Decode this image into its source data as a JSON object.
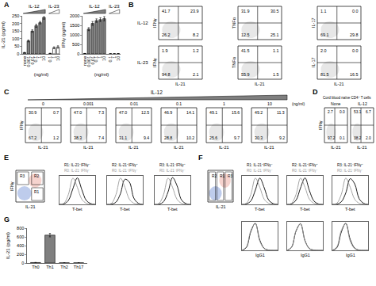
{
  "chart_data": [
    {
      "panel": "A",
      "type": "bar",
      "y_label": "IL-21 (pg/ml)",
      "x_label": "(ng/ml)",
      "ylim": [
        0,
        250
      ],
      "yticks": [
        0,
        50,
        100,
        150,
        200,
        250
      ],
      "groups": [
        {
          "title": "IL-12",
          "color": "#7f7f7f",
          "categories": [
            "none",
            "0.001",
            "0.01",
            "0.1",
            "1",
            "10"
          ],
          "values": [
            8,
            85,
            150,
            185,
            205,
            240
          ],
          "errors": [
            2,
            6,
            8,
            10,
            8,
            12
          ]
        },
        {
          "title": "IL-23",
          "color": "#ffffff",
          "categories": [
            "0.1",
            "1",
            "10"
          ],
          "values": [
            3,
            40,
            45
          ],
          "errors": [
            1,
            6,
            8
          ]
        }
      ]
    },
    {
      "type": "bar",
      "y_label": "IFNγ (pg/ml)",
      "x_label": "(ng/ml)",
      "ylim": [
        0,
        2000
      ],
      "yticks": [
        0,
        500,
        1000,
        1500,
        2000
      ],
      "groups": [
        {
          "title": "IL-12",
          "color": "#7f7f7f",
          "categories": [
            "none",
            "0.001",
            "0.01",
            "0.1",
            "1",
            "10"
          ],
          "values": [
            20,
            1300,
            1600,
            1750,
            1800,
            1850
          ],
          "errors": [
            5,
            80,
            100,
            90,
            100,
            110
          ]
        },
        {
          "title": "IL-23",
          "color": "#ffffff",
          "categories": [
            "0.1",
            "1",
            "10"
          ],
          "values": [
            5,
            5,
            10
          ],
          "errors": [
            2,
            2,
            3
          ]
        }
      ]
    },
    {
      "panel": "B",
      "type": "flow",
      "x_label": "IL-21",
      "rows": [
        {
          "label": "IL-12",
          "plots": [
            {
              "y_label": "IFNγ",
              "quadrants": [
                41.7,
                23.9,
                26.2,
                8.2
              ]
            },
            {
              "y_label": "TNFα",
              "quadrants": [
                31.9,
                30.5,
                12.5,
                25.1
              ]
            },
            {
              "y_label": "IL-17",
              "quadrants": [
                1.1,
                0.0,
                69.1,
                29.8
              ]
            }
          ]
        },
        {
          "label": "IL-23",
          "plots": [
            {
              "y_label": "IFNγ",
              "quadrants": [
                1.9,
                1.2,
                94.8,
                2.1
              ]
            },
            {
              "y_label": "TNFα",
              "quadrants": [
                41.5,
                1.1,
                55.9,
                1.5
              ]
            },
            {
              "y_label": "IL-17",
              "quadrants": [
                2.0,
                0.0,
                81.5,
                16.5
              ]
            }
          ]
        }
      ]
    },
    {
      "panel": "C",
      "type": "flow",
      "title": "IL-12",
      "unit": "(ng/ml)",
      "x_label": "IL-21",
      "y_label": "IFNγ",
      "plots": [
        {
          "header": "0",
          "quadrants": [
            30.9,
            0.7,
            67.2,
            1.2
          ]
        },
        {
          "header": "0.001",
          "quadrants": [
            47.0,
            7.3,
            38.3,
            7.4
          ]
        },
        {
          "header": "0.01",
          "quadrants": [
            47.0,
            12.5,
            31.1,
            9.4
          ]
        },
        {
          "header": "0.1",
          "quadrants": [
            46.9,
            14.1,
            28.8,
            10.2
          ]
        },
        {
          "header": "1",
          "quadrants": [
            49.1,
            15.6,
            25.6,
            9.7
          ]
        },
        {
          "header": "10",
          "quadrants": [
            49.2,
            11.3,
            30.3,
            9.2
          ]
        }
      ]
    },
    {
      "panel": "D",
      "type": "flow",
      "title": "Cord blood naïve CD4⁺ T cells",
      "x_label": "IL-21",
      "y_label": "IFNγ",
      "plots": [
        {
          "header": "None",
          "quadrants": [
            2.7,
            0.0,
            97.2,
            0.1
          ]
        },
        {
          "header": "IL-12",
          "quadrants": [
            53.1,
            6.7,
            38.2,
            2.0
          ]
        }
      ]
    },
    {
      "panel": "E",
      "type": "gate_histogram",
      "gate": {
        "x_label": "IL-21",
        "y_label": "IFNγ",
        "regions": [
          "R1",
          "R2",
          "R3"
        ]
      },
      "x": [
        0,
        1,
        2,
        3,
        4,
        5,
        6,
        7,
        8
      ],
      "xlim": [
        0,
        8
      ],
      "ylim": [
        0,
        100
      ],
      "tick_labels": false,
      "rows": [
        {
          "x_label": "T-bet",
          "histograms": [
            {
              "series": [
                {
                  "name": "R1: IL-21⁺IFNγ⁻",
                  "color": "#000000",
                  "values": [
                    0,
                    2,
                    14,
                    55,
                    93,
                    52,
                    14,
                    3,
                    0
                  ]
                },
                {
                  "name": "R0: IL-21⁻IFNγ⁻",
                  "color": "#9a9a9a",
                  "values": [
                    0,
                    4,
                    35,
                    92,
                    60,
                    18,
                    4,
                    1,
                    0
                  ]
                }
              ]
            },
            {
              "series": [
                {
                  "name": "R2: IL-21⁺IFNγ⁺",
                  "color": "#000000",
                  "values": [
                    0,
                    1,
                    8,
                    38,
                    88,
                    78,
                    22,
                    4,
                    0
                  ]
                },
                {
                  "name": "R0: IL-21⁻IFNγ⁻",
                  "color": "#9a9a9a",
                  "values": [
                    0,
                    4,
                    35,
                    92,
                    60,
                    18,
                    4,
                    1,
                    0
                  ]
                }
              ]
            },
            {
              "series": [
                {
                  "name": "R3: IL-21⁻IFNγ⁺",
                  "color": "#000000",
                  "values": [
                    0,
                    1,
                    10,
                    44,
                    94,
                    66,
                    16,
                    3,
                    0
                  ]
                },
                {
                  "name": "R0: IL-21⁻IFNγ⁻",
                  "color": "#9a9a9a",
                  "values": [
                    0,
                    4,
                    35,
                    92,
                    60,
                    18,
                    4,
                    1,
                    0
                  ]
                }
              ]
            }
          ]
        }
      ]
    },
    {
      "panel": "F",
      "type": "gate_histogram",
      "gate": {
        "x_label": "IL-21",
        "regions": [
          "R2",
          "R1",
          "R3"
        ]
      },
      "x": [
        0,
        1,
        2,
        3,
        4,
        5,
        6,
        7,
        8
      ],
      "xlim": [
        0,
        8
      ],
      "ylim": [
        0,
        100
      ],
      "tick_labels": false,
      "rows": [
        {
          "x_label": "T-bet",
          "histograms": [
            {
              "series": [
                {
                  "name": "R1: IL-21⁺IFNγ⁻",
                  "color": "#000000",
                  "values": [
                    0,
                    2,
                    12,
                    50,
                    92,
                    58,
                    15,
                    3,
                    0
                  ]
                },
                {
                  "name": "R0: IL-21⁻IFNγ⁻",
                  "color": "#9a9a9a",
                  "values": [
                    0,
                    4,
                    35,
                    92,
                    60,
                    18,
                    4,
                    1,
                    0
                  ]
                }
              ]
            },
            {
              "series": [
                {
                  "name": "R2: IL-21⁺IFNγ⁺",
                  "color": "#000000",
                  "values": [
                    0,
                    2,
                    15,
                    58,
                    93,
                    48,
                    12,
                    2,
                    0
                  ]
                },
                {
                  "name": "R0: IL-21⁻IFNγ⁻",
                  "color": "#9a9a9a",
                  "values": [
                    0,
                    4,
                    35,
                    92,
                    60,
                    18,
                    4,
                    1,
                    0
                  ]
                }
              ]
            },
            {
              "series": [
                {
                  "name": "R3: IL-21⁻IFNγ⁺",
                  "color": "#000000",
                  "values": [
                    0,
                    1,
                    9,
                    40,
                    90,
                    72,
                    20,
                    4,
                    0
                  ]
                },
                {
                  "name": "R0: IL-21⁻IFNγ⁻",
                  "color": "#9a9a9a",
                  "values": [
                    0,
                    4,
                    35,
                    92,
                    60,
                    18,
                    4,
                    1,
                    0
                  ]
                }
              ]
            }
          ]
        },
        {
          "x_label": "IgG1",
          "histograms": [
            {
              "series": [
                {
                  "color": "#000000",
                  "values": [
                    0,
                    10,
                    66,
                    95,
                    36,
                    7,
                    1,
                    0,
                    0
                  ]
                },
                {
                  "color": "#9a9a9a",
                  "values": [
                    0,
                    12,
                    70,
                    94,
                    32,
                    6,
                    1,
                    0,
                    0
                  ]
                }
              ]
            },
            {
              "series": [
                {
                  "color": "#000000",
                  "values": [
                    0,
                    11,
                    68,
                    93,
                    34,
                    6,
                    1,
                    0,
                    0
                  ]
                },
                {
                  "color": "#9a9a9a",
                  "values": [
                    0,
                    12,
                    70,
                    94,
                    32,
                    6,
                    1,
                    0,
                    0
                  ]
                }
              ]
            },
            {
              "series": [
                {
                  "color": "#000000",
                  "values": [
                    0,
                    9,
                    64,
                    95,
                    38,
                    8,
                    1,
                    0,
                    0
                  ]
                },
                {
                  "color": "#9a9a9a",
                  "values": [
                    0,
                    12,
                    70,
                    94,
                    32,
                    6,
                    1,
                    0,
                    0
                  ]
                }
              ]
            }
          ]
        }
      ]
    },
    {
      "panel": "G",
      "type": "bar",
      "y_label": "IL-21 (pg/ml)",
      "ylim": [
        0,
        800
      ],
      "yticks": [
        0,
        200,
        400,
        600,
        800
      ],
      "groups": [
        {
          "color": "#7f7f7f",
          "categories": [
            "Th0",
            "Th1",
            "Th2",
            "Th17"
          ],
          "values": [
            10,
            640,
            5,
            5
          ],
          "errors": [
            3,
            40,
            2,
            2
          ]
        }
      ]
    }
  ]
}
